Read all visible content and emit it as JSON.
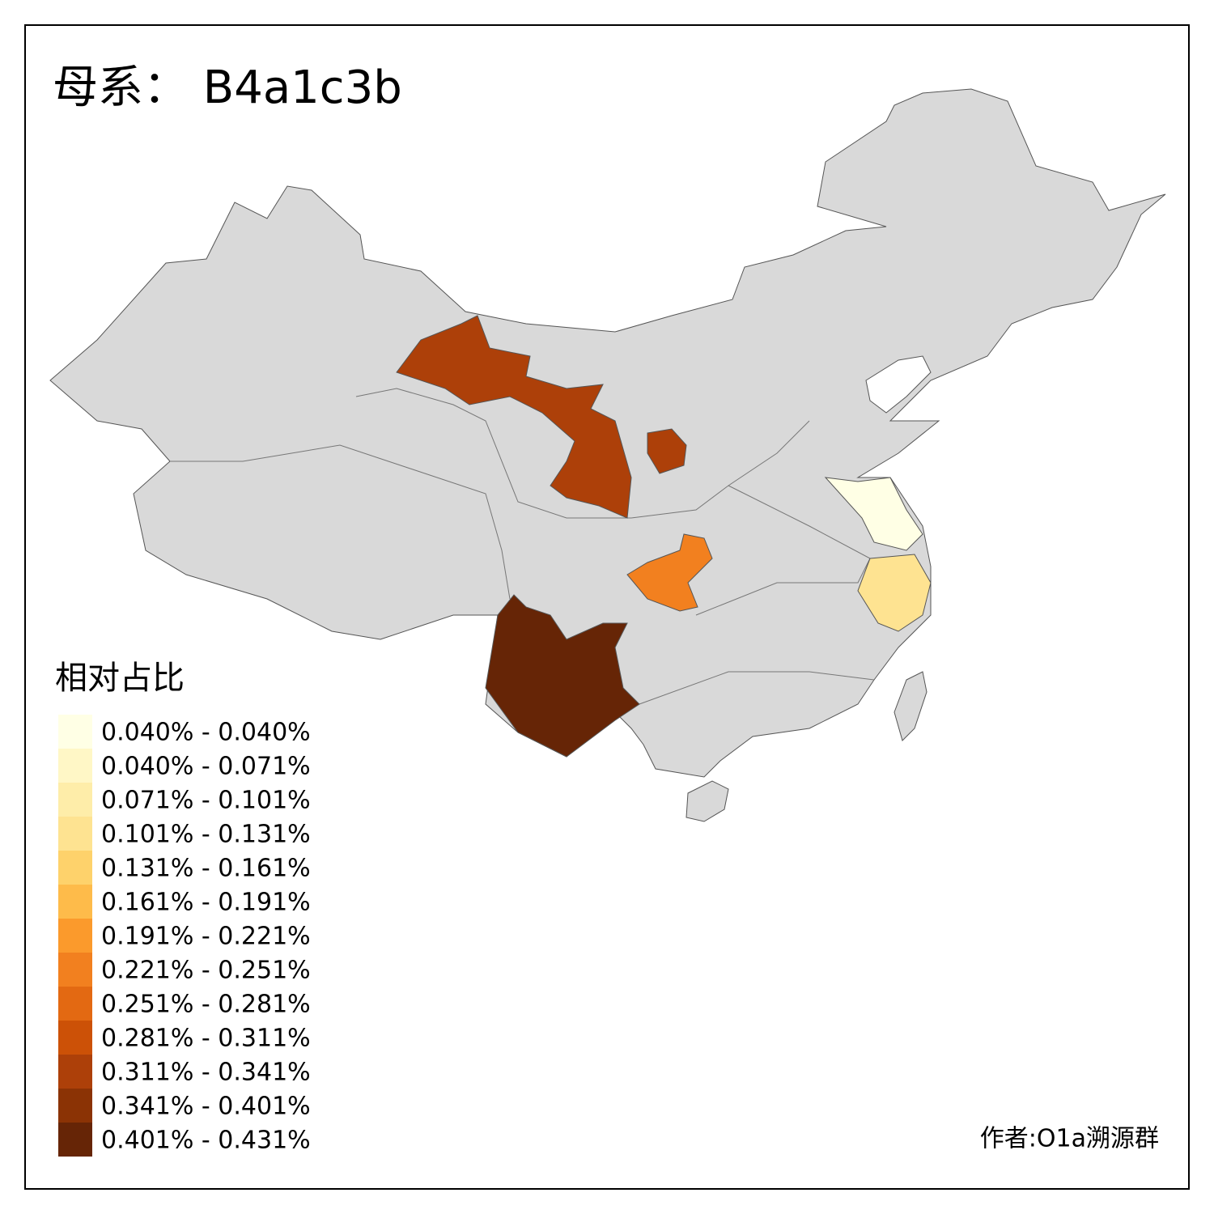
{
  "title": "母系： B4a1c3b",
  "legend": {
    "title": "相对占比",
    "items": [
      {
        "label": "0.040% - 0.040%",
        "color": "#ffffe5"
      },
      {
        "label": "0.040% - 0.071%",
        "color": "#fff7c6"
      },
      {
        "label": "0.071% - 0.101%",
        "color": "#feeda9"
      },
      {
        "label": "0.101% - 0.131%",
        "color": "#fee391"
      },
      {
        "label": "0.131% - 0.161%",
        "color": "#fed26b"
      },
      {
        "label": "0.161% - 0.191%",
        "color": "#febb4a"
      },
      {
        "label": "0.191% - 0.221%",
        "color": "#fb9a2c"
      },
      {
        "label": "0.221% - 0.251%",
        "color": "#f2801f"
      },
      {
        "label": "0.251% - 0.281%",
        "color": "#e36912"
      },
      {
        "label": "0.281% - 0.311%",
        "color": "#cc5107"
      },
      {
        "label": "0.311% - 0.341%",
        "color": "#ad4009"
      },
      {
        "label": "0.341% - 0.401%",
        "color": "#8b3305"
      },
      {
        "label": "0.401% - 0.431%",
        "color": "#662506"
      }
    ]
  },
  "credit": "作者:O1a溯源群"
}
